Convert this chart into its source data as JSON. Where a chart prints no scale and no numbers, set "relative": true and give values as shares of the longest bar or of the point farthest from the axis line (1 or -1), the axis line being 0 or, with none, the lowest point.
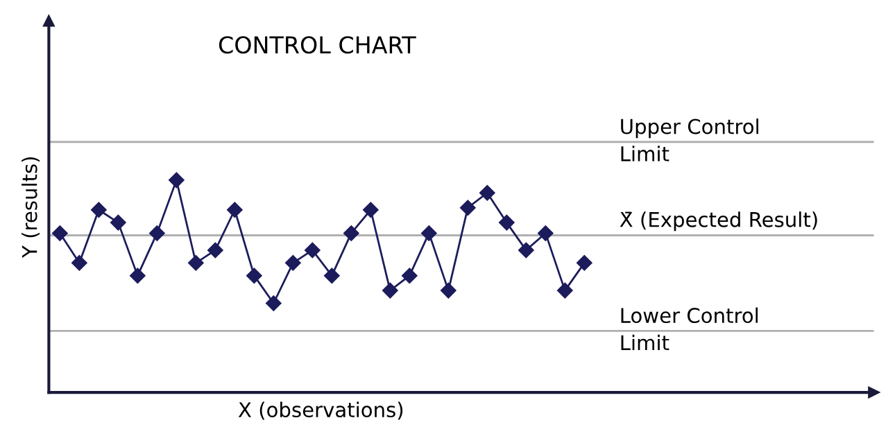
{
  "chart_data": {
    "type": "line",
    "title": "CONTROL CHART",
    "xlabel": "X (observations)",
    "ylabel": "Y (results)",
    "relative": true,
    "categories": [
      null,
      null,
      null,
      null,
      null,
      null,
      null,
      null,
      null,
      null,
      null,
      null,
      null,
      null,
      null,
      null,
      null,
      null,
      null,
      null,
      null,
      null,
      null,
      null,
      null,
      null,
      null,
      null
    ],
    "series": [
      {
        "color": "#1c1c5c",
        "values": [
          0.75,
          0.61,
          0.86,
          0.8,
          0.55,
          0.75,
          1,
          0.61,
          0.67,
          0.86,
          0.55,
          0.42,
          0.61,
          0.67,
          0.55,
          0.75,
          0.86,
          0.48,
          0.55,
          0.75,
          0.48,
          0.87,
          0.94,
          0.8,
          0.67,
          0.75,
          0.48,
          0.61
        ]
      }
    ],
    "marker": "diamond",
    "line_style": "solid",
    "legend": false,
    "ref_lines": [
      {
        "axis": "y",
        "value": 1.18,
        "label": "Upper Control\nLimit",
        "color": "#b0b0b0"
      },
      {
        "axis": "y",
        "value": 0.74,
        "label": "X̄ (Expected Result)",
        "color": "#b0b0b0"
      },
      {
        "axis": "y",
        "value": 0.29,
        "label": "Lower Control\nLimit",
        "color": "#b0b0b0"
      }
    ]
  }
}
